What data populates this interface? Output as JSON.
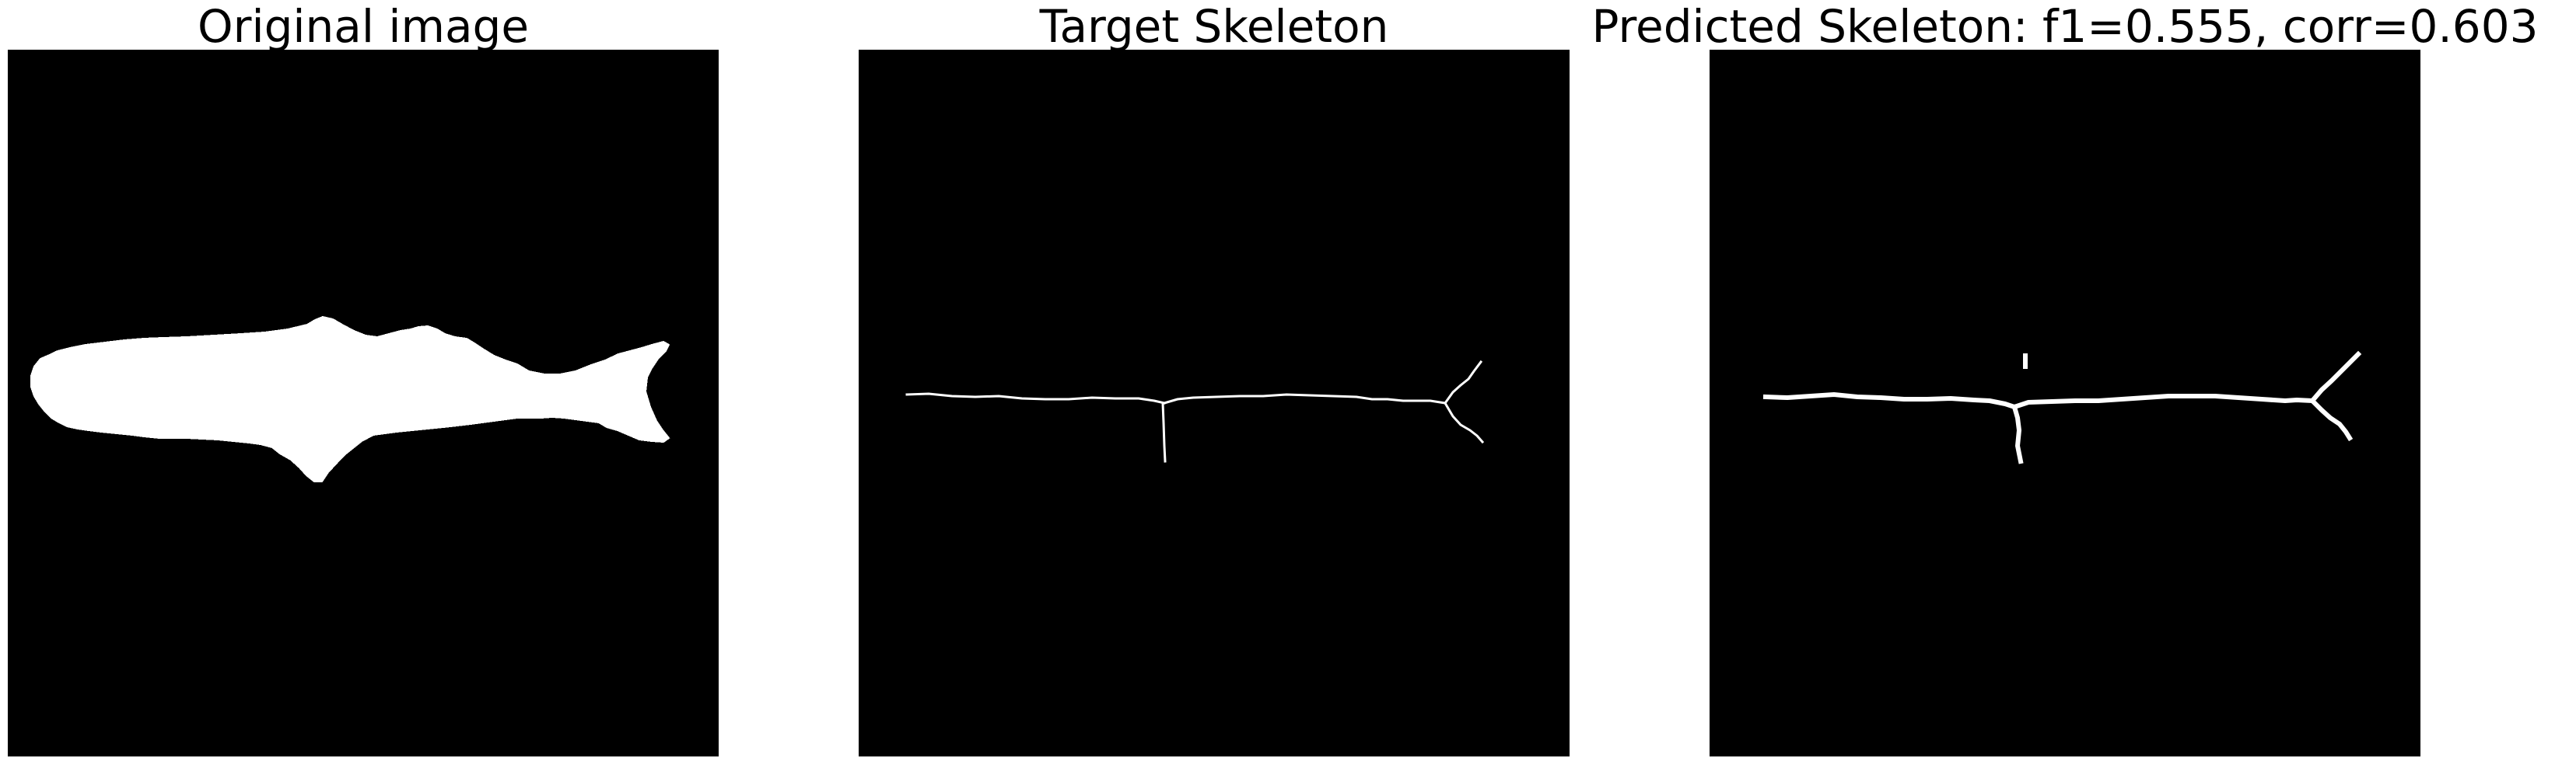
{
  "panels": [
    {
      "title": "Original image"
    },
    {
      "title": "Target Skeleton"
    },
    {
      "title": "Predicted Skeleton: f1=0.555, corr=0.603"
    }
  ]
}
